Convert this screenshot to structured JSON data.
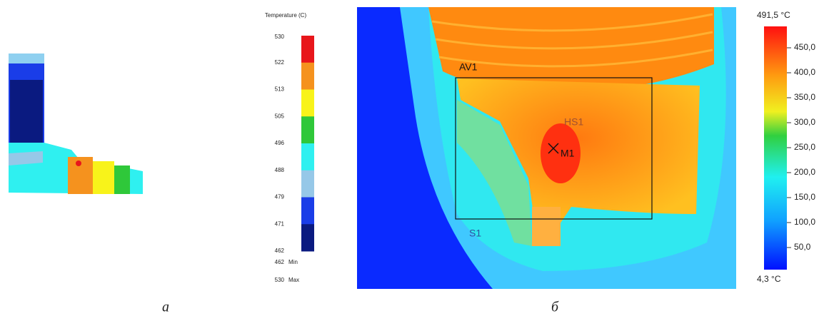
{
  "left_panel": {
    "legend_title": "Temperature (C)",
    "legend_ticks": [
      "530",
      "522",
      "513",
      "505",
      "496",
      "488",
      "479",
      "471",
      "462"
    ],
    "min_value": "462",
    "min_label": "Min",
    "max_value": "530",
    "max_label": "Max",
    "caption": "а"
  },
  "right_panel": {
    "scale_max": "491,5 °C",
    "scale_min": "4,3 °C",
    "scale_ticks": [
      "450,0",
      "400,0",
      "350,0",
      "300,0",
      "250,0",
      "200,0",
      "150,0",
      "100,0",
      "50,0"
    ],
    "markers": [
      "AV1",
      "HS1",
      "M1",
      "S1"
    ],
    "caption": "б"
  }
}
